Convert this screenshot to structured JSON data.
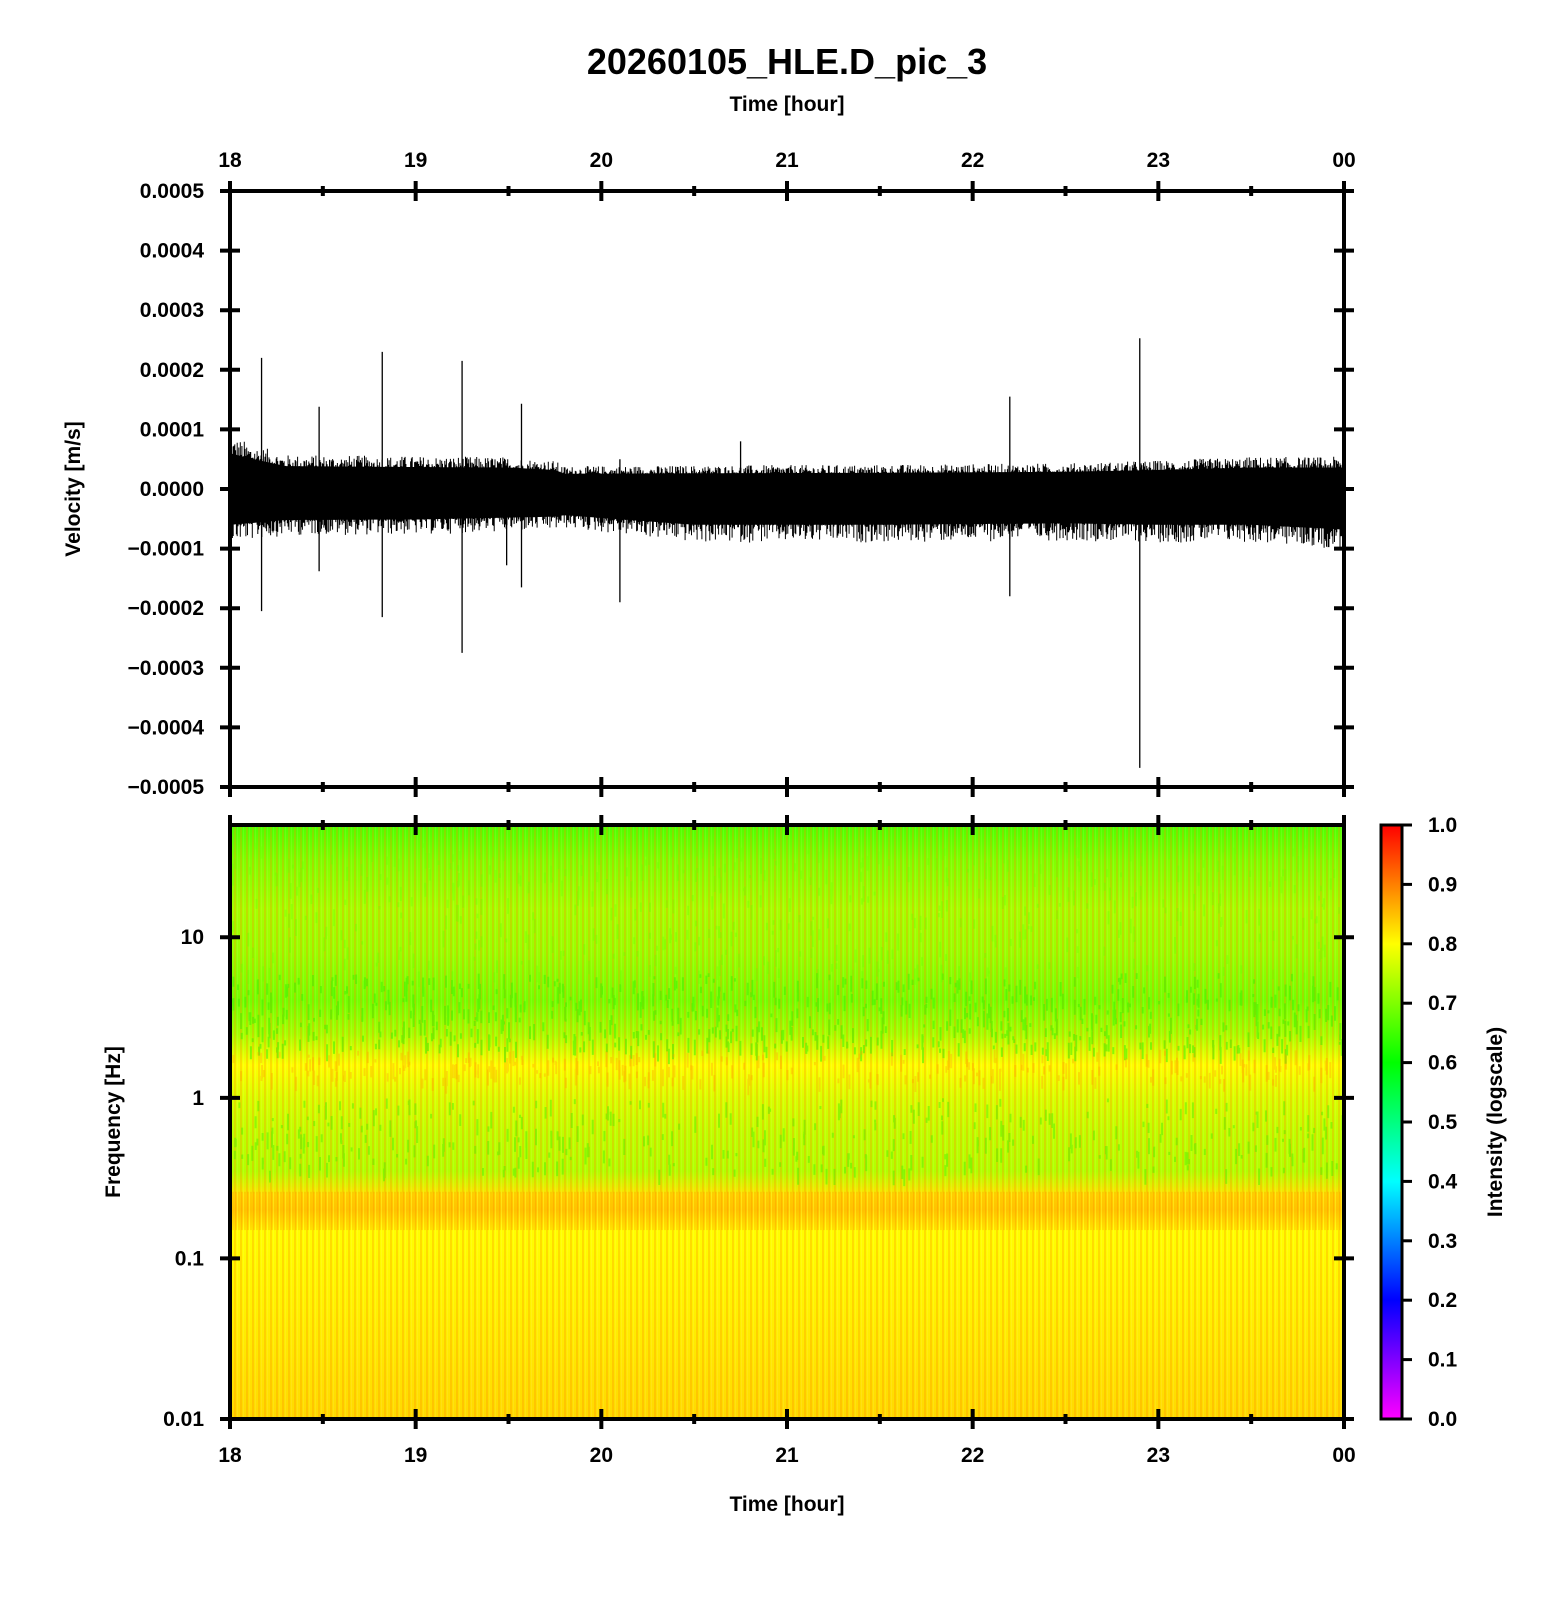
{
  "chart_data": [
    {
      "type": "line",
      "title": "20260105_HLE.D_pic_3",
      "xlabel": "Time [hour]",
      "ylabel": "Velocity [m/s]",
      "x_tick_labels": [
        "18",
        "19",
        "20",
        "21",
        "22",
        "23",
        "00"
      ],
      "y_tick_labels": [
        "0.0005",
        "0.0004",
        "0.0003",
        "0.0002",
        "0.0001",
        "0.0000",
        "−0.0001",
        "−0.0002",
        "−0.0003",
        "−0.0004",
        "−0.0005"
      ],
      "xlim": [
        18,
        24
      ],
      "ylim": [
        -0.0005,
        0.0005
      ],
      "grid": false,
      "noise_band": {
        "x": [
          18.0,
          18.1,
          18.3,
          19.0,
          19.5,
          19.75,
          19.8,
          20.5,
          21.5,
          22.5,
          23.0,
          23.5,
          24.0
        ],
        "upper": [
          7.5e-05,
          6.5e-05,
          4.8e-05,
          4.6e-05,
          4.5e-05,
          4e-05,
          3.2e-05,
          3.3e-05,
          3.4e-05,
          3.6e-05,
          4e-05,
          4.5e-05,
          4.5e-05
        ],
        "lower": [
          -7.5e-05,
          -7.2e-05,
          -6.5e-05,
          -6.4e-05,
          -6e-05,
          -5.8e-05,
          -5.5e-05,
          -7.5e-05,
          -7.5e-05,
          -7.2e-05,
          -7.5e-05,
          -7.5e-05,
          -8.5e-05
        ]
      },
      "spikes": [
        {
          "x": 18.17,
          "max": 0.00022,
          "min": -0.000205
        },
        {
          "x": 18.48,
          "max": 0.000138,
          "min": -0.000138
        },
        {
          "x": 18.82,
          "max": 0.00023,
          "min": -0.000215
        },
        {
          "x": 19.25,
          "max": 0.000215,
          "min": -0.000275
        },
        {
          "x": 19.49,
          "max": 2e-05,
          "min": -0.000128
        },
        {
          "x": 19.57,
          "max": 0.000143,
          "min": -0.000165
        },
        {
          "x": 20.1,
          "max": 5e-05,
          "min": -0.00019
        },
        {
          "x": 20.75,
          "max": 8e-05,
          "min": -3e-05
        },
        {
          "x": 22.2,
          "max": 0.000155,
          "min": -0.00018
        },
        {
          "x": 22.9,
          "max": 0.000253,
          "min": -0.000468
        }
      ]
    },
    {
      "type": "heatmap",
      "xlabel": "Time [hour]",
      "ylabel": "Frequency [Hz]",
      "colorbar_label": "Intensity (logscale)",
      "x_tick_labels": [
        "18",
        "19",
        "20",
        "21",
        "22",
        "23",
        "00"
      ],
      "y_tick_labels": [
        "10",
        "1",
        "0.1",
        "0.01"
      ],
      "colorbar_tick_labels": [
        "1.0",
        "0.9",
        "0.8",
        "0.7",
        "0.6",
        "0.5",
        "0.4",
        "0.3",
        "0.2",
        "0.1",
        "0.0"
      ],
      "xlim": [
        18,
        24
      ],
      "ylim": [
        0.01,
        50
      ],
      "y_scale": "log",
      "clim": [
        0,
        1
      ],
      "colormap": [
        {
          "v": 0.0,
          "color": "#ff00ff"
        },
        {
          "v": 0.2,
          "color": "#0000ff"
        },
        {
          "v": 0.4,
          "color": "#00ffff"
        },
        {
          "v": 0.6,
          "color": "#00ff00"
        },
        {
          "v": 0.8,
          "color": "#ffff00"
        },
        {
          "v": 1.0,
          "color": "#ff0000"
        }
      ],
      "intensity_profile": [
        {
          "freq": 50,
          "intensity": 0.66
        },
        {
          "freq": 30,
          "intensity": 0.7
        },
        {
          "freq": 15,
          "intensity": 0.73
        },
        {
          "freq": 8,
          "intensity": 0.72
        },
        {
          "freq": 4,
          "intensity": 0.69
        },
        {
          "freq": 2.5,
          "intensity": 0.73
        },
        {
          "freq": 1.6,
          "intensity": 0.8
        },
        {
          "freq": 1.0,
          "intensity": 0.77
        },
        {
          "freq": 0.6,
          "intensity": 0.75
        },
        {
          "freq": 0.35,
          "intensity": 0.74
        },
        {
          "freq": 0.25,
          "intensity": 0.82
        },
        {
          "freq": 0.2,
          "intensity": 0.83
        },
        {
          "freq": 0.15,
          "intensity": 0.8
        },
        {
          "freq": 0.05,
          "intensity": 0.81
        },
        {
          "freq": 0.01,
          "intensity": 0.83
        }
      ]
    }
  ]
}
